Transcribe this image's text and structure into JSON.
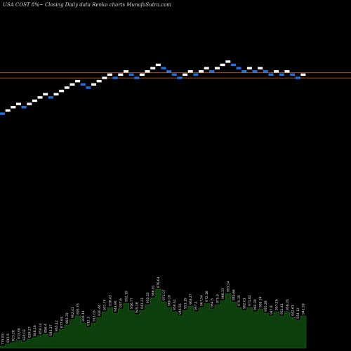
{
  "header": {
    "text": "USA COST 8%~ Closing Daily data Renko charts MunafaSutra.com"
  },
  "colors": {
    "background": "#000000",
    "brick_up": "#ffffff",
    "brick_down": "#1e6fe0",
    "reference_line": "#c86414",
    "volume_fill": "#0d3f0d",
    "volume_stroke": "#1f6b1f",
    "label_text": "#e6e6e6"
  },
  "chart_data": {
    "type": "renko",
    "price_range": [
      640,
      1140
    ],
    "brick_step": 10,
    "bricks": [
      {
        "close": 829,
        "dir": "down"
      },
      {
        "close": 839,
        "dir": "up"
      },
      {
        "close": 849,
        "dir": "up"
      },
      {
        "close": 859,
        "dir": "up"
      },
      {
        "close": 849,
        "dir": "down"
      },
      {
        "close": 859,
        "dir": "up"
      },
      {
        "close": 869,
        "dir": "up"
      },
      {
        "close": 879,
        "dir": "up"
      },
      {
        "close": 889,
        "dir": "up"
      },
      {
        "close": 879,
        "dir": "down"
      },
      {
        "close": 889,
        "dir": "up"
      },
      {
        "close": 899,
        "dir": "up"
      },
      {
        "close": 909,
        "dir": "up"
      },
      {
        "close": 919,
        "dir": "up"
      },
      {
        "close": 929,
        "dir": "up"
      },
      {
        "close": 919,
        "dir": "down"
      },
      {
        "close": 909,
        "dir": "down"
      },
      {
        "close": 919,
        "dir": "up"
      },
      {
        "close": 929,
        "dir": "up"
      },
      {
        "close": 939,
        "dir": "up"
      },
      {
        "close": 949,
        "dir": "up"
      },
      {
        "close": 939,
        "dir": "down"
      },
      {
        "close": 949,
        "dir": "up"
      },
      {
        "close": 959,
        "dir": "up"
      },
      {
        "close": 949,
        "dir": "down"
      },
      {
        "close": 939,
        "dir": "down"
      },
      {
        "close": 949,
        "dir": "up"
      },
      {
        "close": 959,
        "dir": "up"
      },
      {
        "close": 969,
        "dir": "up"
      },
      {
        "close": 979,
        "dir": "up"
      },
      {
        "close": 969,
        "dir": "down"
      },
      {
        "close": 959,
        "dir": "down"
      },
      {
        "close": 949,
        "dir": "down"
      },
      {
        "close": 939,
        "dir": "down"
      },
      {
        "close": 949,
        "dir": "up"
      },
      {
        "close": 959,
        "dir": "up"
      },
      {
        "close": 949,
        "dir": "down"
      },
      {
        "close": 959,
        "dir": "up"
      },
      {
        "close": 969,
        "dir": "up"
      },
      {
        "close": 959,
        "dir": "down"
      },
      {
        "close": 969,
        "dir": "up"
      },
      {
        "close": 979,
        "dir": "up"
      },
      {
        "close": 989,
        "dir": "up"
      },
      {
        "close": 979,
        "dir": "down"
      },
      {
        "close": 969,
        "dir": "down"
      },
      {
        "close": 959,
        "dir": "down"
      },
      {
        "close": 969,
        "dir": "up"
      },
      {
        "close": 959,
        "dir": "down"
      },
      {
        "close": 969,
        "dir": "up"
      },
      {
        "close": 959,
        "dir": "down"
      },
      {
        "close": 949,
        "dir": "down"
      },
      {
        "close": 959,
        "dir": "up"
      },
      {
        "close": 949,
        "dir": "down"
      },
      {
        "close": 959,
        "dir": "up"
      },
      {
        "close": 949,
        "dir": "down"
      },
      {
        "close": 939,
        "dir": "down"
      },
      {
        "close": 949,
        "dir": "up"
      }
    ],
    "reference_lines": [
      951,
      935
    ],
    "volume": [
      3,
      6,
      8,
      11,
      9,
      13,
      15,
      18,
      20,
      16,
      22,
      27,
      33,
      41,
      46,
      36,
      30,
      36,
      44,
      52,
      58,
      50,
      56,
      64,
      54,
      48,
      54,
      62,
      72,
      84,
      66,
      58,
      52,
      46,
      54,
      60,
      52,
      58,
      64,
      56,
      62,
      68,
      78,
      66,
      58,
      54,
      58,
      52,
      56,
      50,
      46,
      52,
      46,
      52,
      44,
      40,
      46
    ],
    "volume_range": [
      0,
      100
    ],
    "labels": [
      "775.83",
      "815.5",
      "823.28",
      "813.08",
      "835.03",
      "839.27",
      "848.16",
      "859.14",
      "856.4",
      "844.27",
      "865.12",
      "877.63",
      "883.35",
      "902.41",
      "895.78",
      "906.14",
      "912.3",
      "913.05",
      "920.44",
      "931.74",
      "938.43",
      "944.96",
      "937.6",
      "952.19",
      "956.77",
      "949.18",
      "941.23",
      "955.52",
      "966.91",
      "976.64",
      "971.07",
      "960.19",
      "958.41",
      "946.55",
      "951.19",
      "963.27",
      "957.1",
      "967.54",
      "972.18",
      "964.5",
      "975.9",
      "986.33",
      "993.14",
      "982.66",
      "970.35",
      "962.01",
      "971.82",
      "960.39",
      "969.74",
      "955.28",
      "947.8",
      "957.16",
      "951.41",
      "956.05",
      "942.61",
      "934.12",
      "941.59"
    ]
  }
}
